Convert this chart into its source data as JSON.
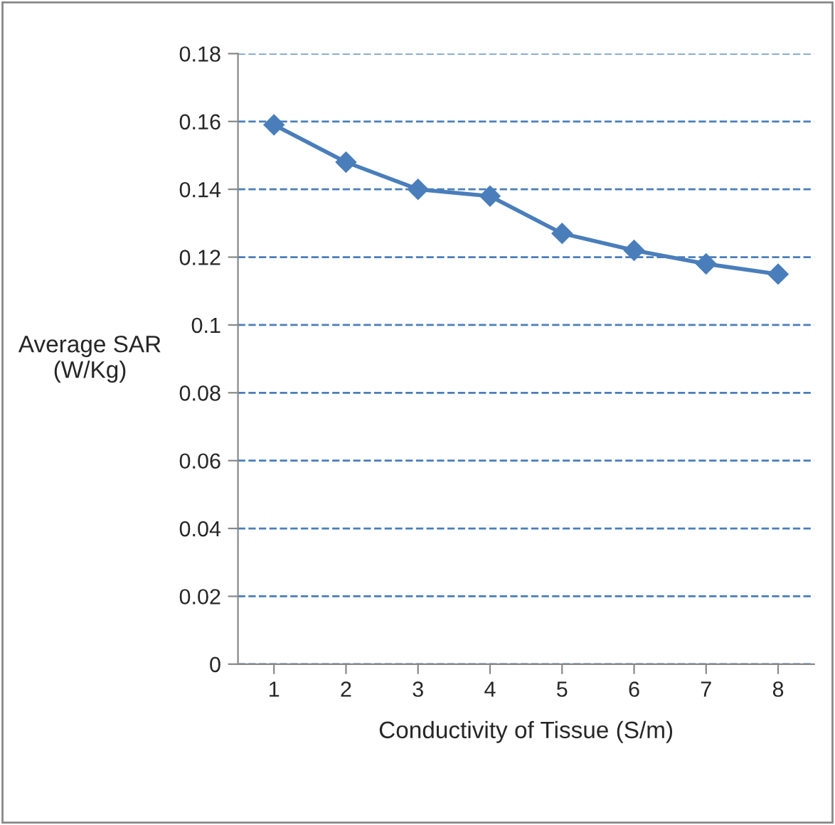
{
  "chart_data": {
    "type": "line",
    "xlabel": "Conductivity of Tissue (S/m)",
    "ylabel": "Average SAR\n(W/Kg)",
    "categories": [
      "1",
      "2",
      "3",
      "4",
      "5",
      "6",
      "7",
      "8"
    ],
    "series": [
      {
        "color": "#4a7ebb",
        "values": [
          0.159,
          0.148,
          0.14,
          0.138,
          0.127,
          0.122,
          0.118,
          0.115
        ]
      }
    ],
    "ylim": [
      0,
      0.18
    ],
    "yticks": [
      0,
      0.02,
      0.04,
      0.06,
      0.08,
      0.1,
      0.12,
      0.14,
      0.16,
      0.18
    ],
    "grid": "y",
    "marker": "diamond",
    "line_style": "solid",
    "legend": false
  }
}
